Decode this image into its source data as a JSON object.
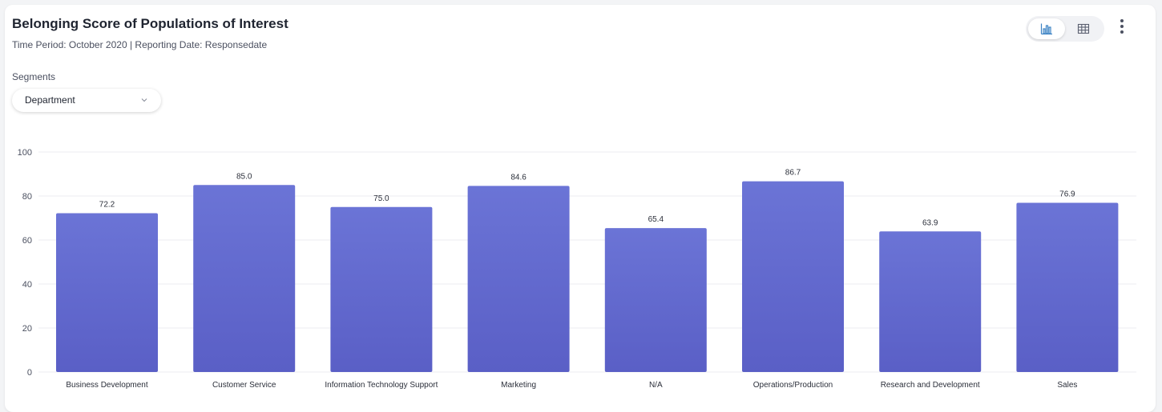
{
  "header": {
    "title": "Belonging Score of Populations of Interest",
    "subtitle": "Time Period: October 2020 | Reporting Date: Responsedate"
  },
  "segments": {
    "label": "Segments",
    "selected": "Department"
  },
  "view_toggle": {
    "options": [
      "bar-chart-icon",
      "table-icon"
    ],
    "active": "bar-chart-icon",
    "accent_color": "#3b82c4"
  },
  "menu": {
    "icon": "more-vertical-icon"
  },
  "colors": {
    "bar_top": "#6b74d6",
    "bar_bottom": "#5a5fc6",
    "grid": "#ececf0"
  },
  "chart_data": {
    "type": "bar",
    "categories": [
      "Business Development",
      "Customer Service",
      "Information Technology Support",
      "Marketing",
      "N/A",
      "Operations/Production",
      "Research and Development",
      "Sales"
    ],
    "values": [
      72.2,
      85.0,
      75.0,
      84.6,
      65.4,
      86.7,
      63.9,
      76.9
    ],
    "value_labels": [
      "72.2",
      "85.0",
      "75.0",
      "84.6",
      "65.4",
      "86.7",
      "63.9",
      "76.9"
    ],
    "yticks": [
      0,
      20,
      40,
      60,
      80,
      100
    ],
    "ylim": [
      0,
      100
    ],
    "grid": true,
    "title": "",
    "xlabel": "",
    "ylabel": ""
  }
}
